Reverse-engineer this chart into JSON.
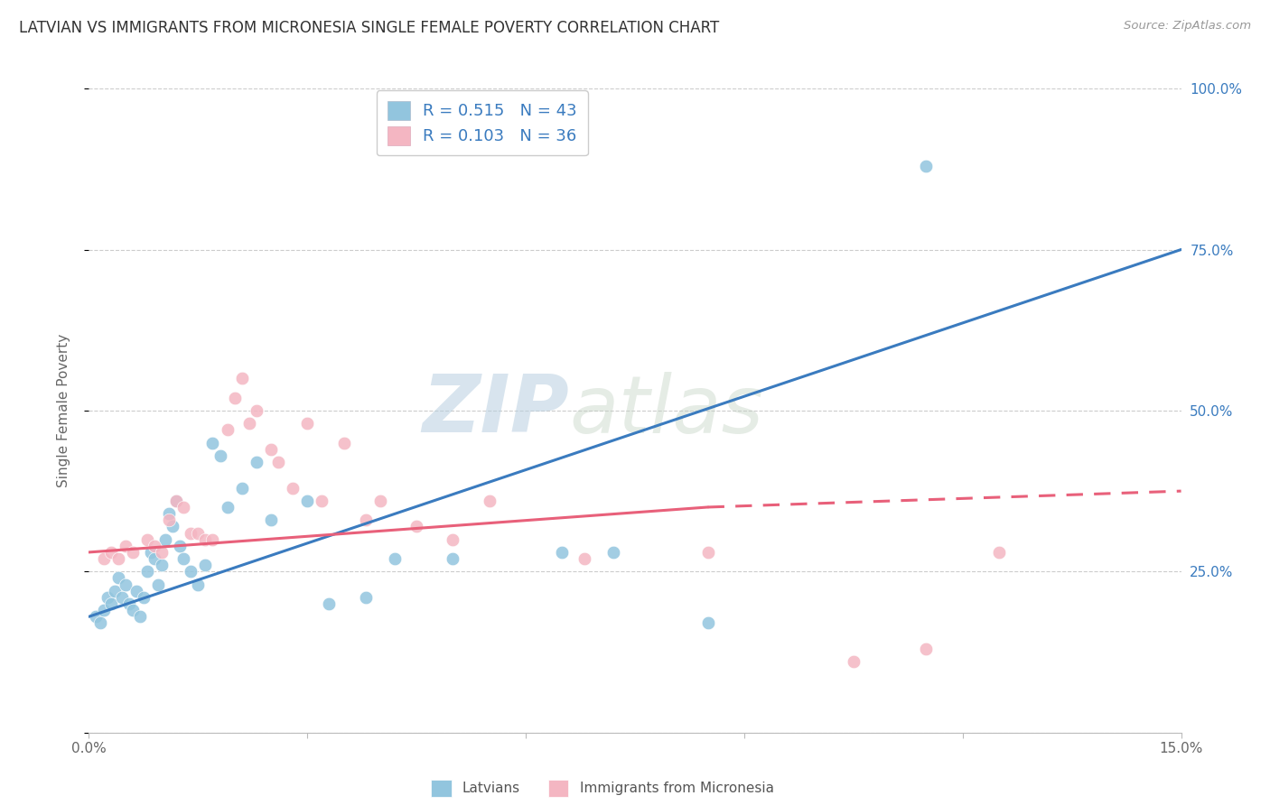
{
  "title": "LATVIAN VS IMMIGRANTS FROM MICRONESIA SINGLE FEMALE POVERTY CORRELATION CHART",
  "source": "Source: ZipAtlas.com",
  "ylabel": "Single Female Poverty",
  "xlim": [
    0,
    15
  ],
  "ylim": [
    0,
    100
  ],
  "blue_color": "#92c5de",
  "pink_color": "#f4b6c2",
  "blue_line_color": "#3a7bbf",
  "pink_line_color": "#e8607a",
  "latvian_x": [
    0.1,
    0.15,
    0.2,
    0.25,
    0.3,
    0.35,
    0.4,
    0.45,
    0.5,
    0.55,
    0.6,
    0.65,
    0.7,
    0.75,
    0.8,
    0.85,
    0.9,
    0.95,
    1.0,
    1.05,
    1.1,
    1.15,
    1.2,
    1.25,
    1.3,
    1.4,
    1.5,
    1.6,
    1.7,
    1.8,
    1.9,
    2.1,
    2.3,
    2.5,
    3.0,
    3.3,
    3.8,
    4.2,
    5.0,
    6.5,
    7.2,
    8.5,
    11.5
  ],
  "latvian_y": [
    18,
    17,
    19,
    21,
    20,
    22,
    24,
    21,
    23,
    20,
    19,
    22,
    18,
    21,
    25,
    28,
    27,
    23,
    26,
    30,
    34,
    32,
    36,
    29,
    27,
    25,
    23,
    26,
    45,
    43,
    35,
    38,
    42,
    33,
    36,
    20,
    21,
    27,
    27,
    28,
    28,
    17,
    88
  ],
  "micronesia_x": [
    0.2,
    0.3,
    0.4,
    0.5,
    0.6,
    0.8,
    0.9,
    1.0,
    1.1,
    1.2,
    1.3,
    1.4,
    1.5,
    1.6,
    1.7,
    1.9,
    2.0,
    2.1,
    2.2,
    2.3,
    2.5,
    2.6,
    2.8,
    3.0,
    3.2,
    3.5,
    3.8,
    4.0,
    4.5,
    5.0,
    5.5,
    6.8,
    8.5,
    10.5,
    11.5,
    12.5
  ],
  "micronesia_y": [
    27,
    28,
    27,
    29,
    28,
    30,
    29,
    28,
    33,
    36,
    35,
    31,
    31,
    30,
    30,
    47,
    52,
    55,
    48,
    50,
    44,
    42,
    38,
    48,
    36,
    45,
    33,
    36,
    32,
    30,
    36,
    27,
    28,
    11,
    13,
    28
  ],
  "blue_trendline": [
    [
      0.0,
      15.0
    ],
    [
      18.0,
      75.0
    ]
  ],
  "pink_trendline_solid": [
    [
      0.0,
      8.5
    ],
    [
      28.0,
      35.0
    ]
  ],
  "pink_trendline_dashed": [
    [
      8.5,
      15.0
    ],
    [
      35.0,
      37.5
    ]
  ]
}
